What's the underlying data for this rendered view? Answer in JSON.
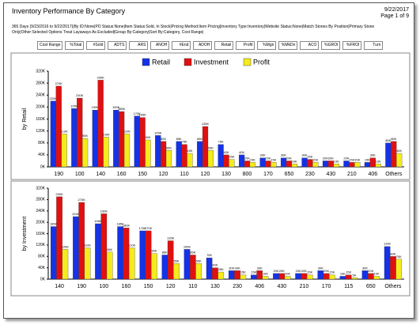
{
  "report": {
    "title": "Inventory Performance By Category",
    "date": "9/22/2017",
    "page": "Page 1 of 9",
    "criteria": "365 Days (9/23/2016 to 9/22/2017)|By ID:None|PO Status:None|Item Status:Sold, In Stock|Pricing Method:Item Pricing|Inventory Type:Inventory|Website Status:None|Match Stones By Position|Primary Stone Only|Other:Selected Options Treat Layaways As Excluded|Group By:Category|Sort By:Category, Cost Range|",
    "columns": [
      "Cost Range",
      "%Total",
      "#Sold",
      "ADTS",
      "ARS",
      "ANOH",
      "#End",
      "ADOH",
      "Retail",
      "Profit",
      "%Mgn",
      "%MkDn",
      "ACO",
      "%GROI",
      "%FROI",
      "Turn"
    ]
  },
  "chart_data": [
    {
      "type": "bar",
      "y_label": "by Retail",
      "legend": true,
      "grid": false,
      "categories": [
        "190",
        "100",
        "140",
        "160",
        "150",
        "120",
        "110",
        "120",
        "130",
        "800",
        "170",
        "650",
        "230",
        "430",
        "210",
        "406",
        "Others"
      ],
      "ylim": [
        0,
        320000
      ],
      "yticks": [
        {
          "value": 0,
          "label": "0K"
        },
        {
          "value": 40000,
          "label": "40K"
        },
        {
          "value": 80000,
          "label": "80K"
        },
        {
          "value": 120000,
          "label": "120K"
        },
        {
          "value": 160000,
          "label": "160K"
        },
        {
          "value": 200000,
          "label": "200K"
        },
        {
          "value": 240000,
          "label": "240K"
        },
        {
          "value": 280000,
          "label": "280K"
        },
        {
          "value": 320000,
          "label": "320K"
        }
      ],
      "series": [
        {
          "name": "Retail",
          "color": "#1432e6",
          "values": [
            220000,
            195000,
            190000,
            190000,
            170000,
            105000,
            85000,
            85000,
            75000,
            40000,
            30000,
            30000,
            30000,
            20000,
            20000,
            15000,
            80000
          ],
          "value_labels": [
            "220K",
            "195K",
            "190K",
            "190K",
            "170K",
            "105K",
            "85K",
            "85K",
            "75K",
            "40K",
            "30K",
            "30K",
            "30K",
            "20K",
            "20K",
            "15K",
            "80K"
          ]
        },
        {
          "name": "Investment",
          "color": "#e01010",
          "values": [
            270000,
            230000,
            290000,
            185000,
            165000,
            85000,
            75000,
            135000,
            40000,
            20000,
            20000,
            20000,
            25000,
            20000,
            15000,
            30000,
            85000
          ],
          "value_labels": [
            "270K",
            "230K",
            "290K",
            "185K",
            "165K",
            "85K",
            "75K",
            "135K",
            "40K",
            "20K",
            "20K",
            "20K",
            "25K",
            "20K",
            "15K",
            "30K",
            "85K"
          ]
        },
        {
          "name": "Profit",
          "color": "#f4ec1c",
          "values": [
            110000,
            95000,
            100000,
            110000,
            90000,
            55000,
            45000,
            55000,
            25000,
            15000,
            15000,
            10000,
            15000,
            10000,
            15000,
            10000,
            45000
          ],
          "value_labels": [
            "110K",
            "95K",
            "100K",
            "110K",
            "90K",
            "55K",
            "45K",
            "55K",
            "25K",
            "15K",
            "15K",
            "10K",
            "15K",
            "10K",
            "15K",
            "10K",
            "45K"
          ]
        }
      ]
    },
    {
      "type": "bar",
      "y_label": "by Investment",
      "legend": false,
      "grid": false,
      "categories": [
        "140",
        "190",
        "100",
        "160",
        "150",
        "120",
        "110",
        "130",
        "230",
        "406",
        "430",
        "210",
        "170",
        "115",
        "650",
        "Others"
      ],
      "ylim": [
        0,
        320000
      ],
      "yticks": [
        {
          "value": 0,
          "label": "0K"
        },
        {
          "value": 40000,
          "label": "40K"
        },
        {
          "value": 80000,
          "label": "80K"
        },
        {
          "value": 120000,
          "label": "120K"
        },
        {
          "value": 160000,
          "label": "160K"
        },
        {
          "value": 200000,
          "label": "200K"
        },
        {
          "value": 240000,
          "label": "240K"
        },
        {
          "value": 280000,
          "label": "280K"
        },
        {
          "value": 320000,
          "label": "320K"
        }
      ],
      "series": [
        {
          "name": "Retail",
          "color": "#1432e6",
          "values": [
            185000,
            220000,
            195000,
            185000,
            170000,
            85000,
            105000,
            75000,
            30000,
            15000,
            20000,
            20000,
            30000,
            10000,
            30000,
            115000
          ],
          "value_labels": [
            "185K",
            "220K",
            "195K",
            "185K",
            "170K",
            "85K",
            "105K",
            "75K",
            "30K",
            "15K",
            "20K",
            "20K",
            "30K",
            "10K",
            "30K",
            "115K"
          ]
        },
        {
          "name": "Investment",
          "color": "#e01010",
          "values": [
            290000,
            270000,
            230000,
            180000,
            170000,
            135000,
            85000,
            40000,
            30000,
            30000,
            20000,
            20000,
            20000,
            15000,
            20000,
            80000
          ],
          "value_labels": [
            "290K",
            "270K",
            "230K",
            "180K",
            "170K",
            "135K",
            "85K",
            "40K",
            "30K",
            "30K",
            "20K",
            "20K",
            "20K",
            "15K",
            "20K",
            "80K"
          ]
        },
        {
          "name": "Profit",
          "color": "#f4ec1c",
          "values": [
            105000,
            110000,
            95000,
            110000,
            90000,
            55000,
            55000,
            25000,
            15000,
            10000,
            10000,
            15000,
            15000,
            5000,
            10000,
            70000
          ],
          "value_labels": [
            "105K",
            "110K",
            "95K",
            "110K",
            "90K",
            "55K",
            "55K",
            "25K",
            "15K",
            "10K",
            "10K",
            "15K",
            "15K",
            "5K",
            "10K",
            "70K"
          ]
        }
      ]
    }
  ]
}
